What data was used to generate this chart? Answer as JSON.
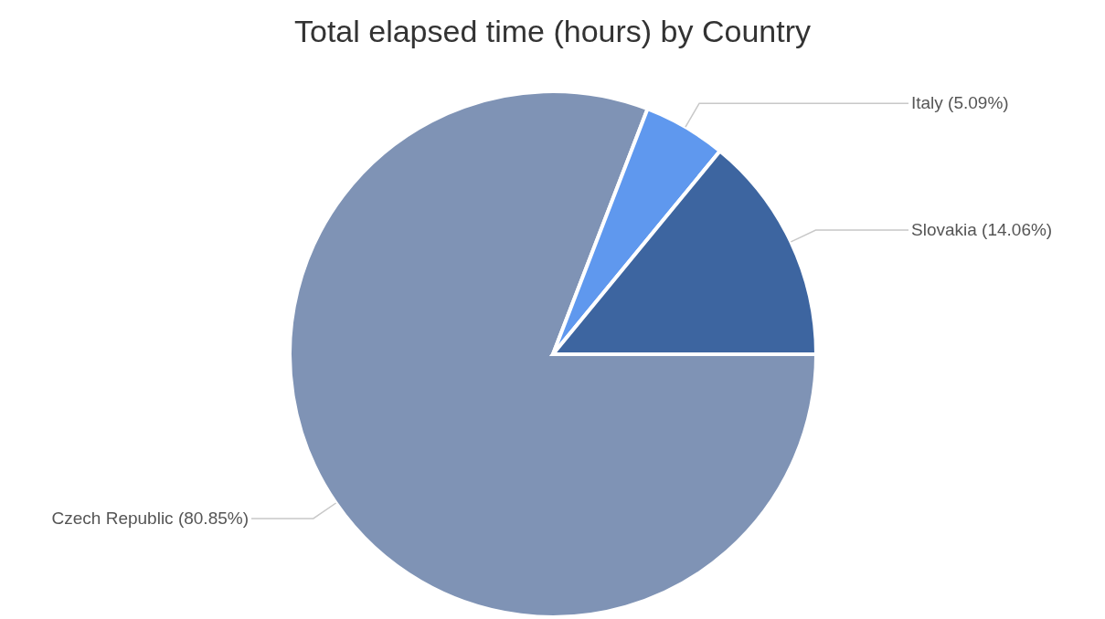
{
  "chart_data": {
    "type": "pie",
    "title": "Total elapsed time (hours) by Country",
    "categories": [
      "Czech Republic",
      "Italy",
      "Slovakia"
    ],
    "values": [
      80.85,
      5.09,
      14.06
    ],
    "value_labels": [
      "(80.85%)",
      "(5.09%)",
      "(14.06%)"
    ],
    "colors": [
      "#7f93b5",
      "#5f98ee",
      "#3d65a0"
    ]
  }
}
